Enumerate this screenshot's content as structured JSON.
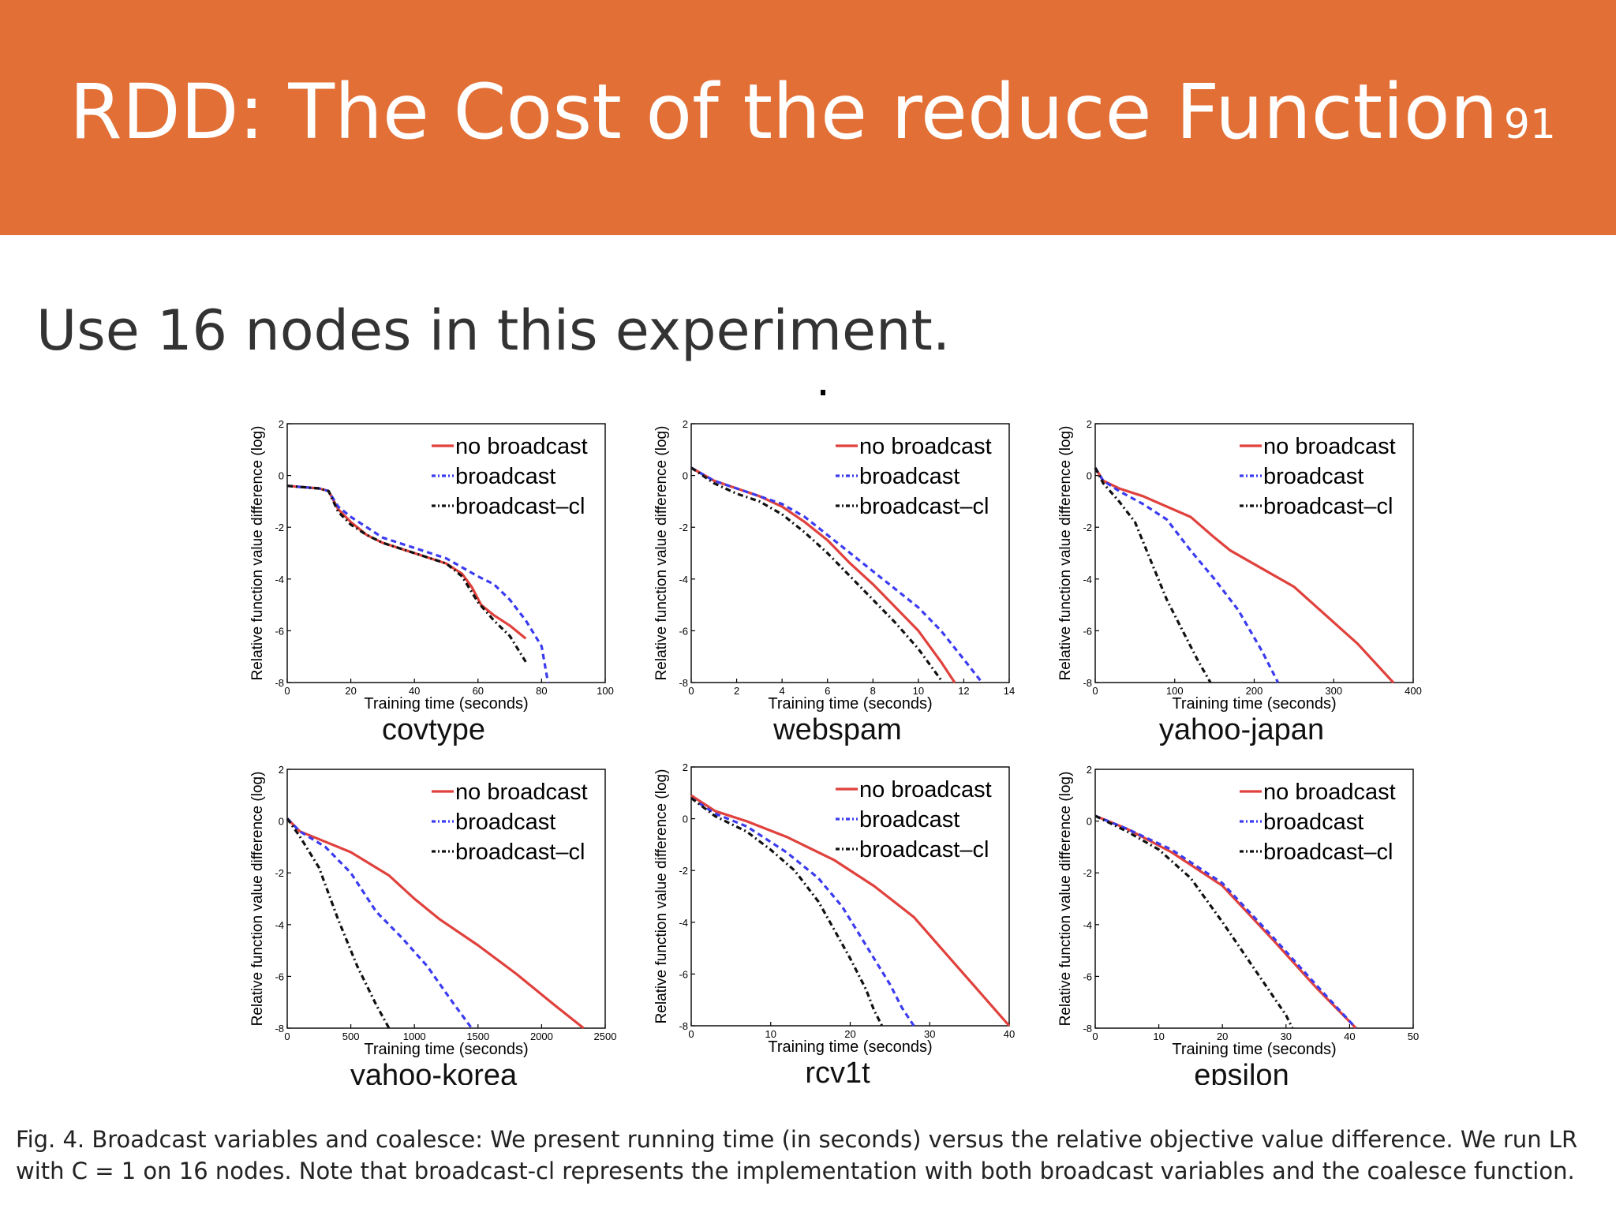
{
  "slide": {
    "title": "RDD: The Cost of the reduce Function",
    "page_number": "91",
    "subtitle": "Use 16 nodes in this experiment.",
    "caption": "Fig. 4. Broadcast variables and coalesce: We present running time (in seconds) versus the relative objective value difference. We run LR with C = 1 on 16 nodes. Note that broadcast-cl represents the implementation with both broadcast variables and the coalesce function.",
    "colors": {
      "header": "#e26f35",
      "no_broadcast": "#e0413c",
      "broadcast": "#3b3bf0",
      "broadcast_cl": "#111111"
    }
  },
  "chart_data": [
    {
      "type": "line",
      "title": "covtype",
      "xlabel": "Training time (seconds)",
      "ylabel": "Relative function value difference (log)",
      "xlim": [
        0,
        100
      ],
      "ylim": [
        -8,
        2
      ],
      "xticks": [
        "0",
        "20",
        "40",
        "60",
        "80",
        "100"
      ],
      "yticks": [
        "2",
        "0",
        "-2",
        "-4",
        "-6",
        "-8"
      ],
      "legend_position": "top-right",
      "series": [
        {
          "name": "no broadcast",
          "style": "solid",
          "x": [
            0,
            5,
            10,
            13,
            16,
            20,
            25,
            30,
            40,
            50,
            55,
            58,
            61,
            65,
            70,
            75
          ],
          "y": [
            -0.4,
            -0.45,
            -0.5,
            -0.6,
            -1.3,
            -1.8,
            -2.3,
            -2.6,
            -3.0,
            -3.4,
            -3.8,
            -4.3,
            -5.0,
            -5.4,
            -5.8,
            -6.3
          ]
        },
        {
          "name": "broadcast",
          "style": "dashed",
          "x": [
            0,
            5,
            10,
            13,
            16,
            20,
            25,
            30,
            40,
            50,
            60,
            65,
            70,
            75,
            80,
            82
          ],
          "y": [
            -0.4,
            -0.45,
            -0.5,
            -0.6,
            -1.2,
            -1.6,
            -2.0,
            -2.4,
            -2.8,
            -3.2,
            -3.9,
            -4.2,
            -4.8,
            -5.6,
            -6.6,
            -8.0
          ]
        },
        {
          "name": "broadcast–cl",
          "style": "dashdot",
          "x": [
            0,
            5,
            10,
            13,
            16,
            20,
            25,
            30,
            40,
            50,
            55,
            60,
            65,
            70,
            75
          ],
          "y": [
            -0.4,
            -0.45,
            -0.5,
            -0.6,
            -1.4,
            -1.9,
            -2.3,
            -2.6,
            -3.0,
            -3.4,
            -3.9,
            -4.9,
            -5.6,
            -6.2,
            -7.2
          ]
        }
      ]
    },
    {
      "type": "line",
      "title": "webspam",
      "xlabel": "Training time (seconds)",
      "ylabel": "Relative function value difference (log)",
      "xlim": [
        0,
        14
      ],
      "ylim": [
        -8,
        2
      ],
      "xticks": [
        "0",
        "2",
        "4",
        "6",
        "8",
        "10",
        "12",
        "14"
      ],
      "yticks": [
        "2",
        "0",
        "-2",
        "-4",
        "-6",
        "-8"
      ],
      "legend_position": "top-right",
      "series": [
        {
          "name": "no broadcast",
          "style": "solid",
          "x": [
            0,
            1,
            2,
            3,
            4,
            5,
            6,
            7,
            8,
            9,
            10,
            11,
            11.6
          ],
          "y": [
            0.3,
            -0.2,
            -0.5,
            -0.8,
            -1.2,
            -1.8,
            -2.5,
            -3.4,
            -4.2,
            -5.1,
            -6.0,
            -7.2,
            -8.0
          ]
        },
        {
          "name": "broadcast",
          "style": "dashed",
          "x": [
            0,
            1,
            2,
            3,
            4,
            5,
            6,
            7,
            8,
            9,
            10,
            11,
            12,
            12.8
          ],
          "y": [
            0.3,
            -0.2,
            -0.5,
            -0.8,
            -1.1,
            -1.6,
            -2.3,
            -3.0,
            -3.7,
            -4.4,
            -5.1,
            -6.0,
            -7.1,
            -8.0
          ]
        },
        {
          "name": "broadcast–cl",
          "style": "dashdot",
          "x": [
            0,
            1,
            2,
            3,
            4,
            5,
            6,
            7,
            8,
            9,
            10,
            11
          ],
          "y": [
            0.3,
            -0.3,
            -0.7,
            -1.0,
            -1.5,
            -2.2,
            -3.0,
            -3.9,
            -4.8,
            -5.7,
            -6.7,
            -7.9
          ]
        }
      ]
    },
    {
      "type": "line",
      "title": "yahoo-japan",
      "xlabel": "Training time (seconds)",
      "ylabel": "Relative function value difference (log)",
      "xlim": [
        0,
        400
      ],
      "ylim": [
        -8,
        2
      ],
      "xticks": [
        "0",
        "100",
        "200",
        "300",
        "400"
      ],
      "yticks": [
        "2",
        "0",
        "-2",
        "-4",
        "-6",
        "-8"
      ],
      "legend_position": "top-right",
      "series": [
        {
          "name": "no broadcast",
          "style": "solid",
          "x": [
            0,
            10,
            30,
            60,
            90,
            120,
            150,
            170,
            210,
            250,
            290,
            330,
            375
          ],
          "y": [
            0.3,
            -0.2,
            -0.5,
            -0.8,
            -1.2,
            -1.6,
            -2.4,
            -2.9,
            -3.6,
            -4.3,
            -5.4,
            -6.5,
            -8.0
          ]
        },
        {
          "name": "broadcast",
          "style": "dashed",
          "x": [
            0,
            10,
            30,
            60,
            90,
            120,
            150,
            180,
            210,
            230
          ],
          "y": [
            0.3,
            -0.2,
            -0.6,
            -1.1,
            -1.7,
            -2.9,
            -4.0,
            -5.2,
            -6.8,
            -8.0
          ]
        },
        {
          "name": "broadcast–cl",
          "style": "dashdot",
          "x": [
            0,
            10,
            30,
            50,
            70,
            90,
            110,
            130,
            145
          ],
          "y": [
            0.3,
            -0.3,
            -1.0,
            -1.8,
            -3.3,
            -4.8,
            -6.0,
            -7.2,
            -8.0
          ]
        }
      ]
    },
    {
      "type": "line",
      "title": "yahoo-korea",
      "xlabel": "Training time (seconds)",
      "ylabel": "Relative function value difference (log)",
      "xlim": [
        0,
        2500
      ],
      "ylim": [
        -8,
        2
      ],
      "xticks": [
        "0",
        "500",
        "1000",
        "1500",
        "2000",
        "2500"
      ],
      "yticks": [
        "2",
        "0",
        "-2",
        "-4",
        "-6",
        "-8"
      ],
      "legend_position": "top-right",
      "series": [
        {
          "name": "no broadcast",
          "style": "solid",
          "x": [
            0,
            100,
            300,
            500,
            800,
            1000,
            1200,
            1500,
            1800,
            2100,
            2330
          ],
          "y": [
            0.1,
            -0.4,
            -0.8,
            -1.2,
            -2.1,
            -3.0,
            -3.8,
            -4.8,
            -5.9,
            -7.1,
            -8.0
          ]
        },
        {
          "name": "broadcast",
          "style": "dashed",
          "x": [
            0,
            100,
            300,
            500,
            700,
            900,
            1100,
            1300,
            1450
          ],
          "y": [
            0.1,
            -0.4,
            -1.0,
            -2.0,
            -3.5,
            -4.5,
            -5.6,
            -7.0,
            -8.0
          ]
        },
        {
          "name": "broadcast–cl",
          "style": "dashdot",
          "x": [
            0,
            100,
            250,
            400,
            550,
            700,
            800
          ],
          "y": [
            0.1,
            -0.6,
            -1.8,
            -3.8,
            -5.6,
            -7.1,
            -8.0
          ]
        }
      ]
    },
    {
      "type": "line",
      "title": "rcv1t",
      "xlabel": "Training time (seconds)",
      "ylabel": "Relative function value difference (log)",
      "xlim": [
        0,
        40
      ],
      "ylim": [
        -8,
        2
      ],
      "xticks": [
        "0",
        "10",
        "20",
        "30",
        "40"
      ],
      "yticks": [
        "2",
        "0",
        "-2",
        "-4",
        "-6",
        "-8"
      ],
      "legend_position": "top-right",
      "series": [
        {
          "name": "no broadcast",
          "style": "solid",
          "x": [
            0,
            3,
            7,
            12,
            18,
            23,
            28,
            32,
            36,
            40
          ],
          "y": [
            0.9,
            0.3,
            -0.1,
            -0.7,
            -1.6,
            -2.6,
            -3.8,
            -5.2,
            -6.6,
            -8.0
          ]
        },
        {
          "name": "broadcast",
          "style": "dashed",
          "x": [
            0,
            3,
            7,
            12,
            16,
            19,
            21,
            23,
            25,
            26.5,
            28
          ],
          "y": [
            0.8,
            0.2,
            -0.3,
            -1.3,
            -2.3,
            -3.4,
            -4.4,
            -5.4,
            -6.4,
            -7.3,
            -8.0
          ]
        },
        {
          "name": "broadcast–cl",
          "style": "dashdot",
          "x": [
            0,
            3,
            7,
            10,
            13,
            16,
            18,
            20,
            22,
            23,
            24
          ],
          "y": [
            0.8,
            0.1,
            -0.5,
            -1.2,
            -2.0,
            -3.2,
            -4.3,
            -5.4,
            -6.6,
            -7.4,
            -8.0
          ]
        }
      ]
    },
    {
      "type": "line",
      "title": "epsilon",
      "xlabel": "Training time (seconds)",
      "ylabel": "Relative function value difference (log)",
      "xlim": [
        0,
        50
      ],
      "ylim": [
        -8,
        2
      ],
      "xticks": [
        "0",
        "10",
        "20",
        "30",
        "40",
        "50"
      ],
      "yticks": [
        "2",
        "0",
        "-2",
        "-4",
        "-6",
        "-8"
      ],
      "legend_position": "top-right",
      "series": [
        {
          "name": "no broadcast",
          "style": "solid",
          "x": [
            0,
            5,
            12,
            20,
            28,
            35,
            41
          ],
          "y": [
            0.2,
            -0.3,
            -1.2,
            -2.5,
            -4.6,
            -6.5,
            -8.0
          ]
        },
        {
          "name": "broadcast",
          "style": "dashed",
          "x": [
            0,
            5,
            12,
            20,
            28,
            35,
            41
          ],
          "y": [
            0.2,
            -0.3,
            -1.1,
            -2.4,
            -4.5,
            -6.4,
            -8.0
          ]
        },
        {
          "name": "broadcast–cl",
          "style": "dashdot",
          "x": [
            0,
            5,
            10,
            15,
            20,
            25,
            30,
            31
          ],
          "y": [
            0.2,
            -0.4,
            -1.1,
            -2.2,
            -3.9,
            -5.7,
            -7.5,
            -8.0
          ]
        }
      ]
    }
  ]
}
